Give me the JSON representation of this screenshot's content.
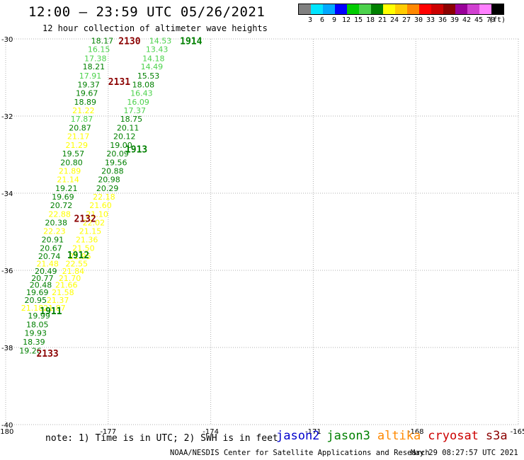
{
  "header": {
    "title": "12:00 — 23:59 UTC 05/26/2021",
    "subtitle": "12 hour collection of altimeter wave heights"
  },
  "legend": {
    "colors": [
      "#808080",
      "#00e5ff",
      "#00a8ff",
      "#0000ff",
      "#00cc00",
      "#4cd24c",
      "#008000",
      "#ffff00",
      "#ffcc00",
      "#ff8800",
      "#ff0000",
      "#cc0000",
      "#8b0000",
      "#990099",
      "#d040d0",
      "#ff80ff",
      "#000000"
    ],
    "labels": [
      "3",
      "6",
      "9",
      "12",
      "15",
      "18",
      "21",
      "24",
      "27",
      "30",
      "33",
      "36",
      "39",
      "42",
      "45",
      "70",
      "(ft)"
    ]
  },
  "footer": {
    "note": "note: 1) Time is in UTC; 2) SWH is in feet",
    "credit": "NOAA/NESDIS Center for Satellite Applications and Research",
    "timestamp": "May 29 08:27:57 UTC 2021",
    "satellites": [
      {
        "name": "jason2",
        "color": "#0000cc"
      },
      {
        "name": "jason3",
        "color": "#008000"
      },
      {
        "name": "altika",
        "color": "#ff8800"
      },
      {
        "name": "cryosat",
        "color": "#cc0000"
      },
      {
        "name": "s3a",
        "color": "#8b0000"
      }
    ]
  },
  "chart_data": {
    "type": "scatter",
    "title": "12:00 — 23:59 UTC 05/26/2021",
    "subtitle": "12 hour collection of altimeter wave heights",
    "xlim": [
      -180,
      -165
    ],
    "ylim": [
      -40,
      -30
    ],
    "x_ticks": [
      "-180",
      "-177",
      "-174",
      "-171",
      "-168",
      "-165"
    ],
    "y_ticks": [
      "-30",
      "-32",
      "-34",
      "-36",
      "-38",
      "-40"
    ],
    "grid": true,
    "pass_labels": [
      {
        "text": "2130",
        "lon": -176.7,
        "lat": -30.05,
        "color": "#8b0000"
      },
      {
        "text": "1914",
        "lon": -174.9,
        "lat": -30.05,
        "color": "#008000"
      },
      {
        "text": "2131",
        "lon": -177.0,
        "lat": -31.1,
        "color": "#8b0000"
      },
      {
        "text": "1913",
        "lon": -176.5,
        "lat": -32.85,
        "color": "#008000"
      },
      {
        "text": "2132",
        "lon": -178.0,
        "lat": -34.65,
        "color": "#8b0000"
      },
      {
        "text": "1912",
        "lon": -178.2,
        "lat": -35.6,
        "color": "#008000"
      },
      {
        "text": "1911",
        "lon": -179.0,
        "lat": -37.05,
        "color": "#008000"
      },
      {
        "text": "2133",
        "lon": -179.1,
        "lat": -38.15,
        "color": "#8b0000"
      }
    ],
    "series": [
      {
        "name": "jason3",
        "points": [
          {
            "lon": -177.5,
            "lat": -30.05,
            "v": "18.17",
            "c": "#008000"
          },
          {
            "lon": -177.6,
            "lat": -30.27,
            "v": "16.15",
            "c": "#4cd24c"
          },
          {
            "lon": -177.7,
            "lat": -30.5,
            "v": "17.38",
            "c": "#4cd24c"
          },
          {
            "lon": -177.75,
            "lat": -30.72,
            "v": "18.21",
            "c": "#008000"
          },
          {
            "lon": -177.85,
            "lat": -30.95,
            "v": "17.91",
            "c": "#4cd24c"
          },
          {
            "lon": -177.9,
            "lat": -31.18,
            "v": "19.37",
            "c": "#008000"
          },
          {
            "lon": -177.95,
            "lat": -31.4,
            "v": "19.67",
            "c": "#008000"
          },
          {
            "lon": -178.0,
            "lat": -31.63,
            "v": "18.89",
            "c": "#008000"
          },
          {
            "lon": -178.05,
            "lat": -31.85,
            "v": "21.22",
            "c": "#ffff00"
          },
          {
            "lon": -178.1,
            "lat": -32.07,
            "v": "17.87",
            "c": "#4cd24c"
          },
          {
            "lon": -178.15,
            "lat": -32.3,
            "v": "20.87",
            "c": "#008000"
          },
          {
            "lon": -178.2,
            "lat": -32.52,
            "v": "21.17",
            "c": "#ffff00"
          },
          {
            "lon": -178.25,
            "lat": -32.75,
            "v": "21.29",
            "c": "#ffff00"
          },
          {
            "lon": -178.35,
            "lat": -32.97,
            "v": "19.57",
            "c": "#008000"
          },
          {
            "lon": -178.4,
            "lat": -33.2,
            "v": "20.80",
            "c": "#008000"
          },
          {
            "lon": -178.45,
            "lat": -33.42,
            "v": "21.89",
            "c": "#ffff00"
          },
          {
            "lon": -178.5,
            "lat": -33.64,
            "v": "21.14",
            "c": "#ffff00"
          },
          {
            "lon": -178.55,
            "lat": -33.87,
            "v": "19.21",
            "c": "#008000"
          },
          {
            "lon": -178.65,
            "lat": -34.09,
            "v": "19.69",
            "c": "#008000"
          },
          {
            "lon": -178.7,
            "lat": -34.31,
            "v": "20.72",
            "c": "#008000"
          },
          {
            "lon": -178.75,
            "lat": -34.54,
            "v": "22.88",
            "c": "#ffff00"
          },
          {
            "lon": -178.85,
            "lat": -34.76,
            "v": "20.38",
            "c": "#008000"
          },
          {
            "lon": -178.9,
            "lat": -34.98,
            "v": "22.23",
            "c": "#ffff00"
          },
          {
            "lon": -178.95,
            "lat": -35.2,
            "v": "20.91",
            "c": "#008000"
          },
          {
            "lon": -179.0,
            "lat": -35.42,
            "v": "20.67",
            "c": "#008000"
          },
          {
            "lon": -179.05,
            "lat": -35.63,
            "v": "20.74",
            "c": "#008000"
          },
          {
            "lon": -179.1,
            "lat": -35.83,
            "v": "21.48",
            "c": "#ffff00"
          },
          {
            "lon": -179.15,
            "lat": -36.02,
            "v": "20.49",
            "c": "#008000"
          },
          {
            "lon": -179.25,
            "lat": -36.2,
            "v": "20.77",
            "c": "#008000"
          },
          {
            "lon": -179.3,
            "lat": -36.38,
            "v": "20.48",
            "c": "#008000"
          },
          {
            "lon": -179.4,
            "lat": -36.57,
            "v": "19.69",
            "c": "#008000"
          },
          {
            "lon": -179.45,
            "lat": -36.77,
            "v": "20.95",
            "c": "#008000"
          },
          {
            "lon": -179.55,
            "lat": -36.97,
            "v": "21.18",
            "c": "#ffff00"
          },
          {
            "lon": -179.35,
            "lat": -37.17,
            "v": "19.99",
            "c": "#008000"
          },
          {
            "lon": -179.4,
            "lat": -37.4,
            "v": "18.05",
            "c": "#008000"
          },
          {
            "lon": -179.45,
            "lat": -37.62,
            "v": "19.93",
            "c": "#008000"
          },
          {
            "lon": -179.5,
            "lat": -37.85,
            "v": "18.39",
            "c": "#008000"
          },
          {
            "lon": -179.6,
            "lat": -38.08,
            "v": "19.26",
            "c": "#008000"
          }
        ]
      },
      {
        "name": "jason3-pass1913",
        "points": [
          {
            "lon": -175.8,
            "lat": -30.05,
            "v": "14.53",
            "c": "#4cd24c"
          },
          {
            "lon": -175.9,
            "lat": -30.27,
            "v": "13.43",
            "c": "#4cd24c"
          },
          {
            "lon": -176.0,
            "lat": -30.5,
            "v": "14.18",
            "c": "#4cd24c"
          },
          {
            "lon": -176.05,
            "lat": -30.72,
            "v": "14.49",
            "c": "#4cd24c"
          },
          {
            "lon": -176.15,
            "lat": -30.95,
            "v": "15.53",
            "c": "#008000"
          },
          {
            "lon": -176.3,
            "lat": -31.18,
            "v": "18.08",
            "c": "#008000"
          },
          {
            "lon": -176.35,
            "lat": -31.4,
            "v": "16.43",
            "c": "#4cd24c"
          },
          {
            "lon": -176.45,
            "lat": -31.63,
            "v": "16.09",
            "c": "#4cd24c"
          },
          {
            "lon": -176.55,
            "lat": -31.85,
            "v": "17.37",
            "c": "#4cd24c"
          },
          {
            "lon": -176.65,
            "lat": -32.07,
            "v": "18.75",
            "c": "#008000"
          },
          {
            "lon": -176.75,
            "lat": -32.3,
            "v": "20.11",
            "c": "#008000"
          },
          {
            "lon": -176.85,
            "lat": -32.52,
            "v": "20.12",
            "c": "#008000"
          },
          {
            "lon": -176.95,
            "lat": -32.75,
            "v": "19.00",
            "c": "#008000"
          },
          {
            "lon": -177.05,
            "lat": -32.97,
            "v": "20.09",
            "c": "#008000"
          },
          {
            "lon": -177.1,
            "lat": -33.2,
            "v": "19.56",
            "c": "#008000"
          },
          {
            "lon": -177.2,
            "lat": -33.42,
            "v": "20.88",
            "c": "#008000"
          },
          {
            "lon": -177.3,
            "lat": -33.64,
            "v": "20.98",
            "c": "#008000"
          },
          {
            "lon": -177.35,
            "lat": -33.87,
            "v": "20.29",
            "c": "#008000"
          },
          {
            "lon": -177.45,
            "lat": -34.09,
            "v": "22.18",
            "c": "#ffff00"
          },
          {
            "lon": -177.55,
            "lat": -34.31,
            "v": "21.60",
            "c": "#ffff00"
          },
          {
            "lon": -177.65,
            "lat": -34.54,
            "v": "21.10",
            "c": "#ffff00"
          },
          {
            "lon": -177.75,
            "lat": -34.76,
            "v": "22.02",
            "c": "#ffff00"
          },
          {
            "lon": -177.85,
            "lat": -34.98,
            "v": "21.15",
            "c": "#ffff00"
          },
          {
            "lon": -177.95,
            "lat": -35.2,
            "v": "21.36",
            "c": "#ffff00"
          },
          {
            "lon": -178.05,
            "lat": -35.42,
            "v": "21.50",
            "c": "#ffff00"
          },
          {
            "lon": -178.15,
            "lat": -35.63,
            "v": "21.95",
            "c": "#ffff00"
          },
          {
            "lon": -178.25,
            "lat": -35.83,
            "v": "22.55",
            "c": "#ffff00"
          },
          {
            "lon": -178.35,
            "lat": -36.02,
            "v": "21.84",
            "c": "#ffff00"
          },
          {
            "lon": -178.45,
            "lat": -36.2,
            "v": "21.70",
            "c": "#ffff00"
          },
          {
            "lon": -178.55,
            "lat": -36.38,
            "v": "21.66",
            "c": "#ffff00"
          },
          {
            "lon": -178.65,
            "lat": -36.57,
            "v": "21.58",
            "c": "#ffff00"
          },
          {
            "lon": -178.8,
            "lat": -36.77,
            "v": "21.37",
            "c": "#ffff00"
          },
          {
            "lon": -178.9,
            "lat": -36.97,
            "v": "21.87",
            "c": "#ffff00"
          }
        ]
      }
    ]
  }
}
